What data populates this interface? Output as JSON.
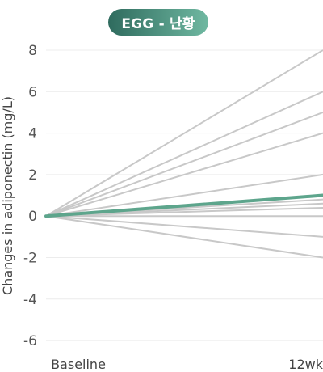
{
  "chart_data": {
    "type": "line",
    "title": "EGG - 난황",
    "ylabel": "Changes in adiponectin (mg/L)",
    "xlabel": "",
    "categories": [
      "Baseline",
      "12wk"
    ],
    "ylim": [
      -6,
      8
    ],
    "yticks": [
      8,
      6,
      4,
      2,
      0,
      -2,
      -4,
      -6
    ],
    "grid": true,
    "series_color": "#c8c8c8",
    "highlight_color": "#5da58c",
    "badge_gradient": [
      "#2f6b5e",
      "#6fb8a1"
    ],
    "series": [
      {
        "values": [
          0,
          8
        ]
      },
      {
        "values": [
          0,
          6
        ]
      },
      {
        "values": [
          0,
          5
        ]
      },
      {
        "values": [
          0,
          4
        ]
      },
      {
        "values": [
          0,
          2
        ]
      },
      {
        "values": [
          0,
          0.8
        ]
      },
      {
        "values": [
          0,
          0.6
        ]
      },
      {
        "values": [
          0,
          0.4
        ]
      },
      {
        "values": [
          0,
          0
        ]
      },
      {
        "values": [
          0,
          -1
        ]
      },
      {
        "values": [
          0,
          -2
        ]
      }
    ],
    "highlight": {
      "values": [
        0,
        1
      ]
    }
  }
}
